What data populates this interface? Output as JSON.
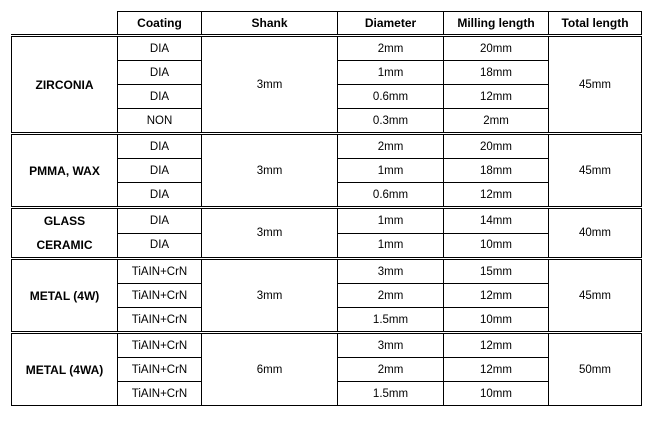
{
  "headers": [
    "",
    "Coating",
    "Shank",
    "Diameter",
    "Milling length",
    "Total length"
  ],
  "groups": [
    {
      "material": [
        "ZIRCONIA"
      ],
      "shank": "3mm",
      "total_length": "45mm",
      "rows": [
        [
          "DIA",
          "2mm",
          "20mm"
        ],
        [
          "DIA",
          "1mm",
          "18mm"
        ],
        [
          "DIA",
          "0.6mm",
          "12mm"
        ],
        [
          "NON",
          "0.3mm",
          "2mm"
        ]
      ]
    },
    {
      "material": [
        "PMMA, WAX"
      ],
      "shank": "3mm",
      "total_length": "45mm",
      "rows": [
        [
          "DIA",
          "2mm",
          "20mm"
        ],
        [
          "DIA",
          "1mm",
          "18mm"
        ],
        [
          "DIA",
          "0.6mm",
          "12mm"
        ]
      ]
    },
    {
      "material": [
        "GLASS",
        "CERAMIC"
      ],
      "shank": "3mm",
      "total_length": "40mm",
      "rows": [
        [
          "DIA",
          "1mm",
          "14mm"
        ],
        [
          "DIA",
          "1mm",
          "10mm"
        ]
      ]
    },
    {
      "material": [
        "METAL (4W)"
      ],
      "shank": "3mm",
      "total_length": "45mm",
      "rows": [
        [
          "TiAIN+CrN",
          "3mm",
          "15mm"
        ],
        [
          "TiAIN+CrN",
          "2mm",
          "12mm"
        ],
        [
          "TiAIN+CrN",
          "1.5mm",
          "10mm"
        ]
      ]
    },
    {
      "material": [
        "METAL (4WA)"
      ],
      "shank": "6mm",
      "total_length": "50mm",
      "rows": [
        [
          "TiAIN+CrN",
          "3mm",
          "12mm"
        ],
        [
          "TiAIN+CrN",
          "2mm",
          "12mm"
        ],
        [
          "TiAIN+CrN",
          "1.5mm",
          "10mm"
        ]
      ]
    }
  ]
}
